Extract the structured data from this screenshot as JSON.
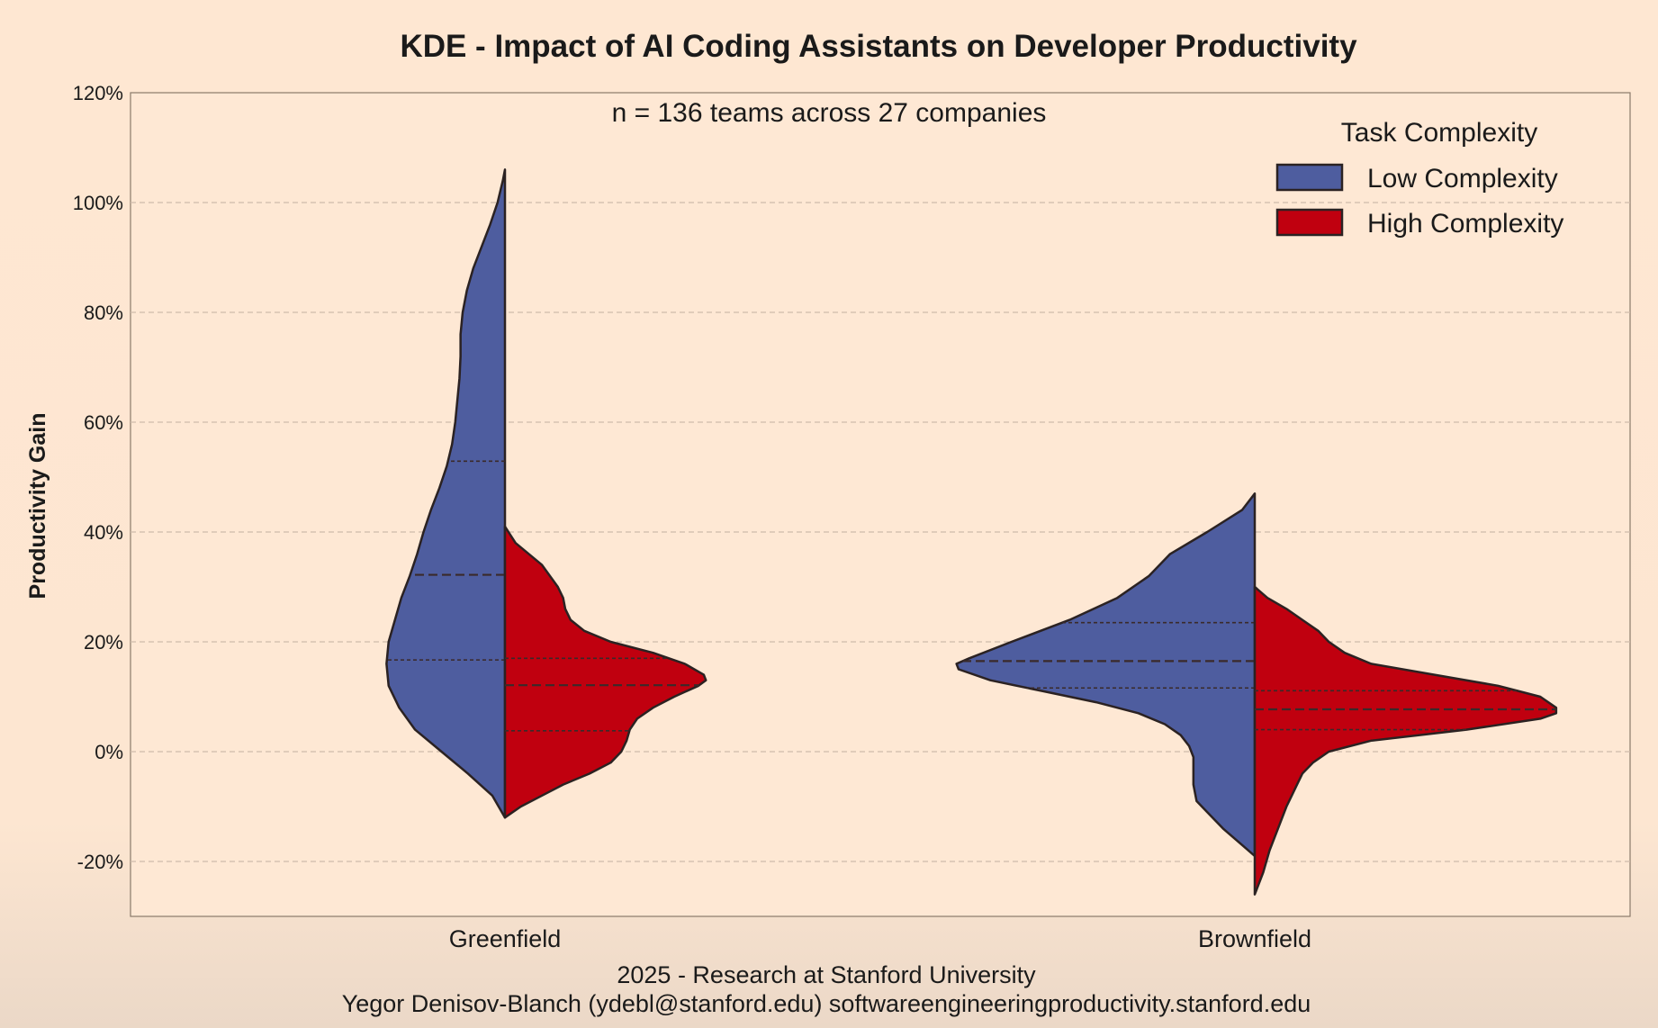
{
  "chart_data": {
    "type": "violin",
    "title": "KDE - Impact of AI Coding Assistants on Developer Productivity",
    "subtitle": "n = 136 teams across 27 companies",
    "ylabel": "Productivity Gain",
    "xlabel": "",
    "ylim": [
      -30,
      120
    ],
    "yticks": [
      -20,
      0,
      20,
      40,
      60,
      80,
      100,
      120
    ],
    "ytick_labels": [
      "-20%",
      "0%",
      "20%",
      "40%",
      "60%",
      "80%",
      "100%",
      "120%"
    ],
    "grid": true,
    "categories": [
      "Greenfield",
      "Brownfield"
    ],
    "legend": {
      "title": "Task Complexity",
      "placement": "top-right",
      "entries": [
        {
          "label": "Low Complexity",
          "color": "#4e5d9f"
        },
        {
          "label": "High Complexity",
          "color": "#c0000f"
        }
      ]
    },
    "series": [
      {
        "name": "Low Complexity",
        "side": "left",
        "color": "#4e5d9f",
        "violins": [
          {
            "category": "Greenfield",
            "quartiles": [
              16.7,
              32.2,
              52.9
            ],
            "profile": [
              [
                -12,
                0
              ],
              [
                -8,
                0.12
              ],
              [
                -4,
                0.35
              ],
              [
                0,
                0.6
              ],
              [
                4,
                0.85
              ],
              [
                8,
                1.0
              ],
              [
                12,
                1.1
              ],
              [
                16,
                1.12
              ],
              [
                20,
                1.1
              ],
              [
                24,
                1.04
              ],
              [
                28,
                0.98
              ],
              [
                32,
                0.9
              ],
              [
                36,
                0.83
              ],
              [
                40,
                0.77
              ],
              [
                44,
                0.7
              ],
              [
                48,
                0.62
              ],
              [
                52,
                0.55
              ],
              [
                56,
                0.5
              ],
              [
                60,
                0.47
              ],
              [
                64,
                0.45
              ],
              [
                68,
                0.43
              ],
              [
                72,
                0.42
              ],
              [
                76,
                0.42
              ],
              [
                80,
                0.4
              ],
              [
                84,
                0.36
              ],
              [
                88,
                0.3
              ],
              [
                92,
                0.22
              ],
              [
                96,
                0.14
              ],
              [
                100,
                0.07
              ],
              [
                104,
                0.02
              ],
              [
                106,
                0
              ]
            ]
          },
          {
            "category": "Brownfield",
            "quartiles": [
              11.6,
              16.5,
              23.5
            ],
            "profile": [
              [
                -19,
                0
              ],
              [
                -17,
                0.12
              ],
              [
                -14,
                0.3
              ],
              [
                -11,
                0.45
              ],
              [
                -9,
                0.55
              ],
              [
                -6,
                0.58
              ],
              [
                -3,
                0.58
              ],
              [
                -1,
                0.58
              ],
              [
                1,
                0.62
              ],
              [
                3,
                0.7
              ],
              [
                5,
                0.85
              ],
              [
                7,
                1.1
              ],
              [
                9,
                1.5
              ],
              [
                11,
                2.0
              ],
              [
                13,
                2.5
              ],
              [
                15,
                2.8
              ],
              [
                16,
                2.82
              ],
              [
                17,
                2.7
              ],
              [
                20,
                2.3
              ],
              [
                24,
                1.75
              ],
              [
                28,
                1.3
              ],
              [
                32,
                1.0
              ],
              [
                36,
                0.8
              ],
              [
                40,
                0.45
              ],
              [
                44,
                0.12
              ],
              [
                47,
                0
              ]
            ]
          }
        ]
      },
      {
        "name": "High Complexity",
        "side": "right",
        "color": "#c0000f",
        "violins": [
          {
            "category": "Greenfield",
            "quartiles": [
              3.8,
              12.1,
              17.0
            ],
            "profile": [
              [
                -12,
                0
              ],
              [
                -10,
                0.15
              ],
              [
                -8,
                0.35
              ],
              [
                -6,
                0.55
              ],
              [
                -4,
                0.8
              ],
              [
                -2,
                1.0
              ],
              [
                0,
                1.1
              ],
              [
                2,
                1.15
              ],
              [
                4,
                1.18
              ],
              [
                6,
                1.25
              ],
              [
                8,
                1.4
              ],
              [
                10,
                1.6
              ],
              [
                12,
                1.83
              ],
              [
                13,
                1.9
              ],
              [
                14,
                1.88
              ],
              [
                16,
                1.7
              ],
              [
                18,
                1.4
              ],
              [
                20,
                1.0
              ],
              [
                22,
                0.75
              ],
              [
                24,
                0.62
              ],
              [
                26,
                0.57
              ],
              [
                28,
                0.55
              ],
              [
                30,
                0.5
              ],
              [
                34,
                0.35
              ],
              [
                38,
                0.1
              ],
              [
                41,
                0
              ]
            ]
          },
          {
            "category": "Brownfield",
            "quartiles": [
              4.0,
              7.7,
              11.1
            ],
            "profile": [
              [
                -26,
                0
              ],
              [
                -22,
                0.08
              ],
              [
                -18,
                0.14
              ],
              [
                -14,
                0.22
              ],
              [
                -10,
                0.3
              ],
              [
                -8,
                0.35
              ],
              [
                -6,
                0.4
              ],
              [
                -4,
                0.45
              ],
              [
                -2,
                0.55
              ],
              [
                0,
                0.7
              ],
              [
                2,
                1.1
              ],
              [
                4,
                2.0
              ],
              [
                6,
                2.7
              ],
              [
                7,
                2.85
              ],
              [
                8,
                2.85
              ],
              [
                10,
                2.7
              ],
              [
                12,
                2.3
              ],
              [
                14,
                1.7
              ],
              [
                16,
                1.1
              ],
              [
                18,
                0.85
              ],
              [
                20,
                0.7
              ],
              [
                22,
                0.6
              ],
              [
                24,
                0.45
              ],
              [
                26,
                0.3
              ],
              [
                28,
                0.12
              ],
              [
                30,
                0
              ]
            ]
          }
        ]
      }
    ]
  },
  "footer": {
    "line1": "2025 - Research at Stanford University",
    "line2": "Yegor Denisov-Blanch (ydebl@stanford.edu) softwareengineeringproductivity.stanford.edu"
  }
}
